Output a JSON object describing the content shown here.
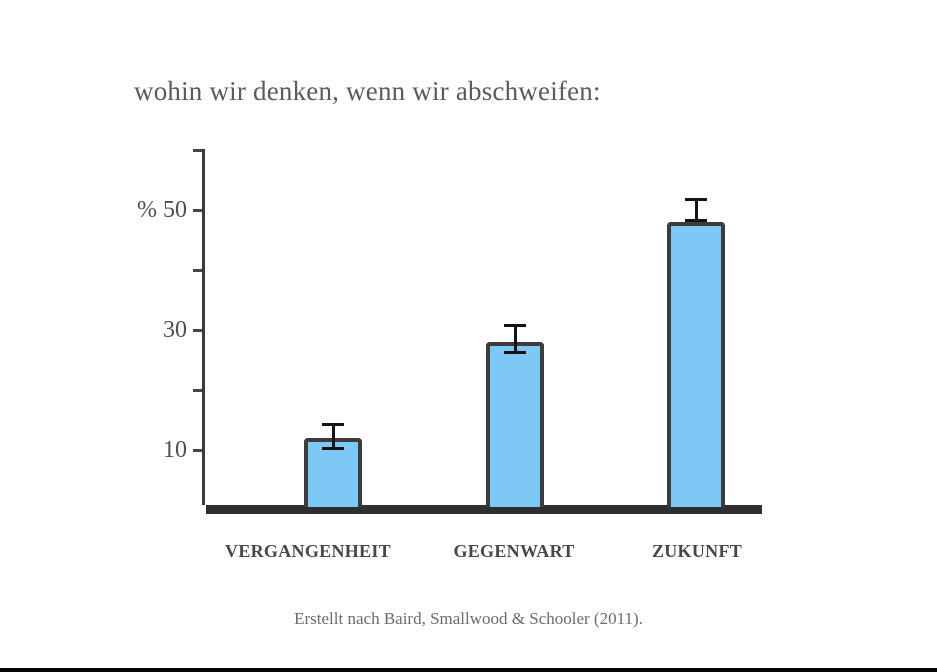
{
  "slide": {
    "title": "wohin wir denken, wenn wir abschweifen:",
    "caption": "Erstellt nach Baird, Smallwood & Schooler (2011)."
  },
  "chart_data": {
    "type": "bar",
    "title": "wohin wir denken, wenn wir abschweifen:",
    "categories": [
      "VERGANGENHEIT",
      "GEGENWART",
      "ZUKUNFT"
    ],
    "values": [
      12,
      28,
      48
    ],
    "error_bars": [
      {
        "low": 10,
        "high": 14.5
      },
      {
        "low": 26,
        "high": 31
      },
      {
        "low": 48,
        "high": 52
      }
    ],
    "unit": "%",
    "yticks": [
      10,
      20,
      30,
      40,
      50,
      60
    ],
    "ytick_labels": [
      {
        "value": 50,
        "label": "% 50"
      },
      {
        "value": 30,
        "label": "30"
      },
      {
        "value": 10,
        "label": "10"
      }
    ],
    "ylim": [
      0,
      60
    ],
    "grid": false,
    "legend": false,
    "bar_color": "#7EC8F7",
    "bar_border_color": "#3C3C3C",
    "error_bar_color": "#141414",
    "axis_color": "#2e2e2e",
    "caption": "Erstellt nach Baird, Smallwood & Schooler (2011)."
  }
}
